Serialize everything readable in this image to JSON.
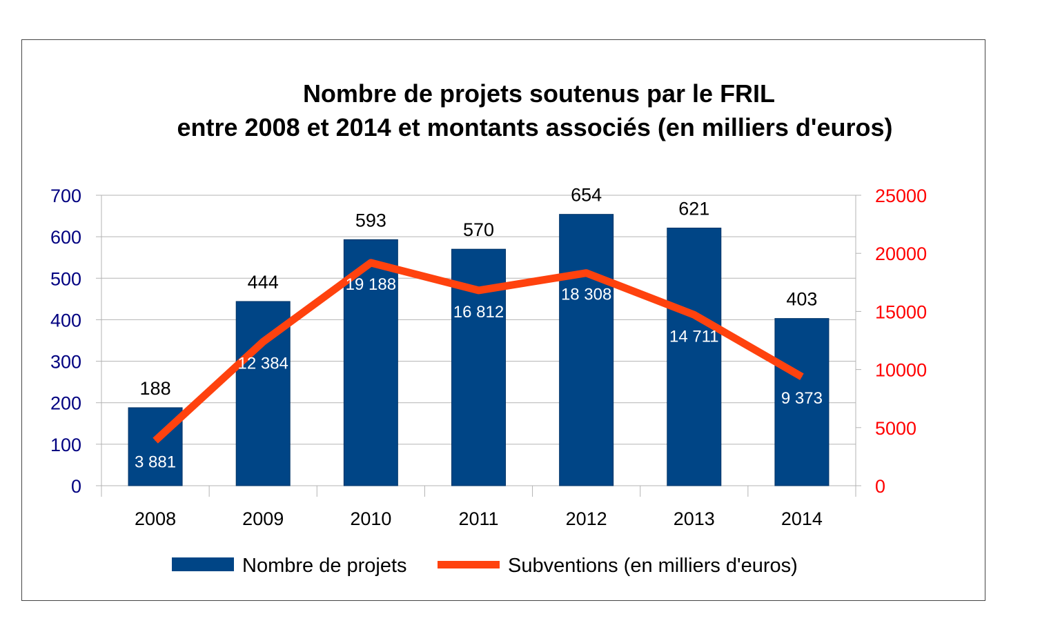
{
  "chart_data": {
    "type": "bar",
    "title_lines": [
      "Nombre de projets soutenus par le FRIL",
      "entre 2008 et 2014 et montants associés (en milliers d'euros)"
    ],
    "categories": [
      "2008",
      "2009",
      "2010",
      "2011",
      "2012",
      "2013",
      "2014"
    ],
    "series": [
      {
        "name": "Nombre de projets",
        "kind": "bar",
        "axis": "left",
        "color": "#004586",
        "values": [
          188,
          444,
          593,
          570,
          654,
          621,
          403
        ],
        "labels": [
          "188",
          "444",
          "593",
          "570",
          "654",
          "621",
          "403"
        ]
      },
      {
        "name": "Subventions (en milliers d'euros)",
        "kind": "line",
        "axis": "right",
        "color": "#ff420e",
        "values": [
          3881,
          12384,
          19188,
          16812,
          18308,
          14711,
          9373
        ],
        "labels": [
          "3 881",
          "12 384",
          "19 188",
          "16 812",
          "18 308",
          "14 711",
          "9 373"
        ]
      }
    ],
    "left_axis": {
      "min": 0,
      "max": 700,
      "ticks": [
        "0",
        "100",
        "200",
        "300",
        "400",
        "500",
        "600",
        "700"
      ],
      "color": "#000080"
    },
    "right_axis": {
      "min": 0,
      "max": 25000,
      "ticks": [
        "0",
        "5000",
        "10000",
        "15000",
        "20000",
        "25000"
      ],
      "color": "#ff0000"
    },
    "grid": true,
    "legend_position": "bottom"
  }
}
